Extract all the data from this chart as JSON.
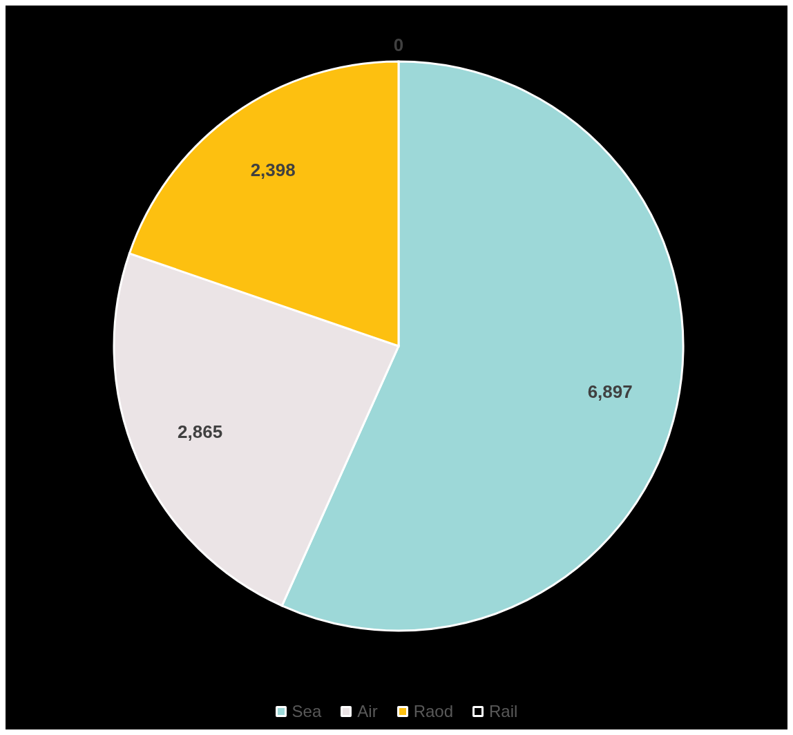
{
  "chart_data": {
    "type": "pie",
    "categories": [
      "Sea",
      "Air",
      "Raod",
      "Rail"
    ],
    "values": [
      6897,
      2865,
      2398,
      0
    ],
    "colors": [
      "#9dd8d8",
      "#ebe4e6",
      "#fdc010",
      "#000000"
    ],
    "value_labels": [
      "6,897",
      "2,865",
      "2,398",
      "0"
    ],
    "legend": "bottom"
  }
}
